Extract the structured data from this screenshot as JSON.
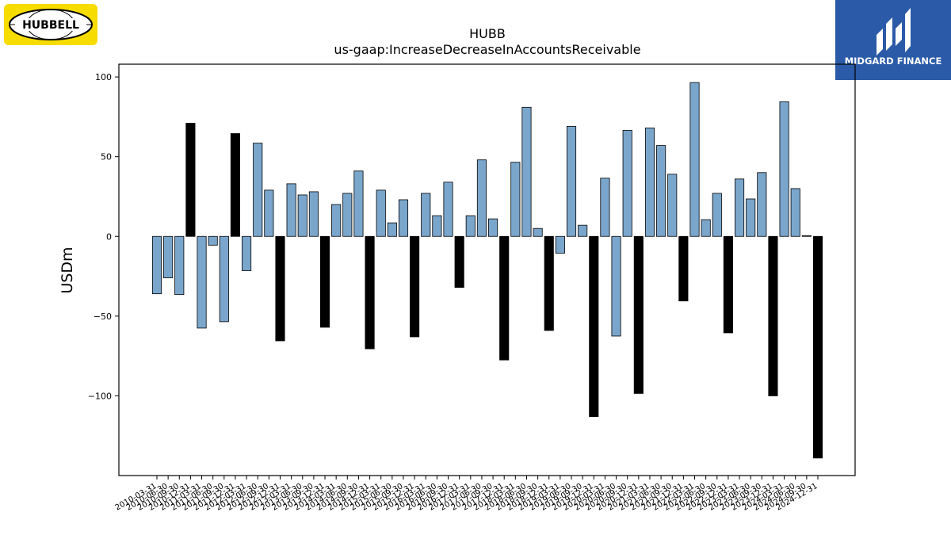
{
  "brand_left": {
    "name": "HUBBELL"
  },
  "brand_right": {
    "name": "MIDGARD FINANCE"
  },
  "chart_data": {
    "type": "bar",
    "title": "HUBB",
    "subtitle": "us-gaap:IncreaseDecreaseInAccountsReceivable",
    "ylabel": "USDm",
    "xlabel": "",
    "ylim": [
      -150,
      108
    ],
    "yticks": [
      100,
      50,
      0,
      -50,
      -100
    ],
    "grid": false,
    "colors": {
      "quarter": "#7aa6cc",
      "annual": "#000000",
      "edge": "#000000"
    },
    "categories": [
      "2010-03-31",
      "2010-06-30",
      "2010-09-30",
      "2010-12-31",
      "2011-03-31",
      "2011-06-30",
      "2011-09-30",
      "2011-12-31",
      "2012-03-31",
      "2012-06-30",
      "2012-09-30",
      "2012-12-31",
      "2013-03-31",
      "2013-06-30",
      "2013-09-30",
      "2013-12-31",
      "2014-03-31",
      "2014-06-30",
      "2014-09-30",
      "2014-12-31",
      "2015-03-31",
      "2015-06-30",
      "2015-09-30",
      "2015-12-31",
      "2016-03-31",
      "2016-06-30",
      "2016-09-30",
      "2016-12-31",
      "2017-03-31",
      "2017-06-30",
      "2017-09-30",
      "2017-12-31",
      "2018-03-31",
      "2018-06-30",
      "2018-09-30",
      "2018-12-31",
      "2019-03-31",
      "2019-06-30",
      "2019-09-30",
      "2019-12-31",
      "2020-03-31",
      "2020-06-30",
      "2020-09-30",
      "2020-12-31",
      "2021-03-31",
      "2021-06-30",
      "2021-09-30",
      "2021-12-31",
      "2022-03-31",
      "2022-06-30",
      "2022-09-30",
      "2022-12-31",
      "2023-03-31",
      "2023-06-30",
      "2023-09-30",
      "2023-12-31",
      "2024-03-31",
      "2024-06-30",
      "2024-09-30",
      "2024-12-31"
    ],
    "values": [
      -36,
      -26,
      -36.5,
      71,
      -57.5,
      -5.5,
      -53.5,
      64.5,
      -21.5,
      58.5,
      29,
      -65.5,
      33,
      26,
      28,
      -57,
      20,
      27,
      41,
      -70.5,
      29,
      8.5,
      23,
      -63,
      27,
      13,
      34,
      -32,
      13,
      48,
      11,
      -77.5,
      46.5,
      81,
      5,
      -59,
      -10.5,
      69,
      7,
      -113,
      36.5,
      -62.5,
      66.5,
      -98.5,
      68,
      57,
      39,
      -40.5,
      96.5,
      10.5,
      27,
      -60.5,
      36,
      23.5,
      40,
      -100,
      84.5,
      30,
      0.5,
      -139
    ],
    "annual_flags": [
      0,
      0,
      0,
      1,
      0,
      0,
      0,
      1,
      0,
      0,
      0,
      1,
      0,
      0,
      0,
      1,
      0,
      0,
      0,
      1,
      0,
      0,
      0,
      1,
      0,
      0,
      0,
      1,
      0,
      0,
      0,
      1,
      0,
      0,
      0,
      1,
      0,
      0,
      0,
      1,
      0,
      0,
      0,
      1,
      0,
      0,
      0,
      1,
      0,
      0,
      0,
      1,
      0,
      0,
      0,
      1,
      0,
      0,
      0,
      1
    ]
  }
}
